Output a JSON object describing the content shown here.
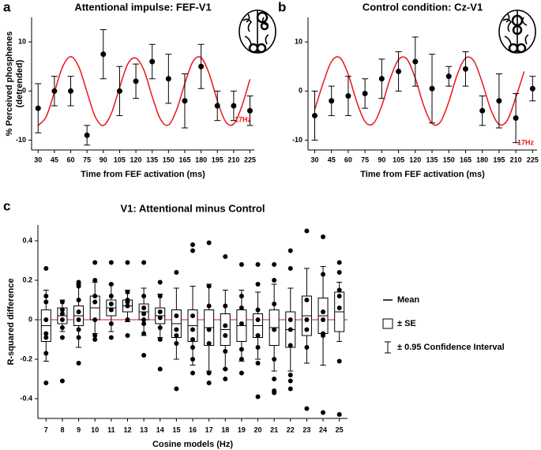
{
  "chart_data": [
    {
      "type": "scatter",
      "panel_label": "a",
      "title": "Attentional impulse: FEF-V1",
      "xlabel": "Time from FEF activation (ms)",
      "ylabel": [
        "% Perceived phosphenes",
        "(detrended)"
      ],
      "x": [
        30,
        45,
        60,
        75,
        90,
        105,
        120,
        135,
        150,
        165,
        180,
        195,
        210,
        225
      ],
      "values": [
        -3.5,
        0,
        0,
        -9,
        7.5,
        0,
        2,
        6,
        2.5,
        -2,
        5,
        -3,
        -3,
        -4
      ],
      "errors": [
        5,
        3,
        3,
        2,
        5,
        5,
        3.5,
        3.5,
        5,
        5.5,
        4.5,
        3,
        3,
        3
      ],
      "color": "#000000",
      "fit": {
        "color": "#e8161b",
        "x": [
          30,
          37.5,
          45,
          52.5,
          60,
          67.5,
          75,
          82.5,
          90,
          97.5,
          105,
          112.5,
          120,
          127.5,
          135,
          142.5,
          150,
          157.5,
          165,
          172.5,
          180,
          187.5,
          195,
          202.5,
          210,
          217.5,
          225
        ],
        "values": [
          -7,
          -5.2,
          -0.2,
          4.9,
          7,
          4.9,
          -0.2,
          -5.2,
          -7,
          -4.5,
          0.7,
          5.5,
          6.7,
          4.2,
          -1.1,
          -5.7,
          -6.9,
          -3.8,
          1.5,
          6,
          6.8,
          3.5,
          -2,
          -6.2,
          -6.7,
          -3.1,
          2.4
        ]
      },
      "annotation": "17Hz",
      "xlim": [
        24,
        229
      ],
      "ylim": [
        -12,
        15
      ],
      "xticks": [
        30,
        45,
        60,
        75,
        90,
        105,
        120,
        135,
        150,
        165,
        180,
        195,
        210,
        225
      ],
      "yticks": [
        10,
        0,
        -10
      ]
    },
    {
      "type": "scatter",
      "panel_label": "b",
      "title": "Control condition: Cz-V1",
      "xlabel": "Time from FEF activation (ms)",
      "x": [
        30,
        45,
        60,
        75,
        90,
        105,
        120,
        135,
        150,
        165,
        180,
        195,
        210,
        225
      ],
      "values": [
        -5,
        -2,
        -1,
        -0.5,
        2.5,
        4,
        6,
        0.5,
        3,
        4.5,
        -4,
        -2,
        -5.5,
        0.5
      ],
      "errors": [
        5,
        3,
        4,
        3,
        4,
        4,
        5,
        7,
        2,
        3.5,
        3,
        5.5,
        5,
        2.5
      ],
      "color": "#000000",
      "fit": {
        "color": "#e8161b",
        "x": [
          30,
          37.5,
          45,
          52.5,
          60,
          67.5,
          75,
          82.5,
          90,
          97.5,
          105,
          112.5,
          120,
          127.5,
          135,
          142.5,
          150,
          157.5,
          165,
          172.5,
          180,
          187.5,
          195,
          202.5,
          210,
          217.5
        ],
        "values": [
          -3.8,
          1.6,
          6,
          6.8,
          3.4,
          -2.1,
          -6.2,
          -6.6,
          -3,
          2.5,
          6.4,
          6.5,
          2.6,
          -2.9,
          -6.6,
          -6.3,
          -2.2,
          3.3,
          6.7,
          6.1,
          1.7,
          -3.7,
          -6.8,
          -5.9,
          -1.3,
          4
        ]
      },
      "annotation": "17Hz",
      "xlim": [
        24,
        229
      ],
      "ylim": [
        -12,
        15
      ],
      "xticks": [
        30,
        45,
        60,
        75,
        90,
        105,
        120,
        135,
        150,
        165,
        180,
        195,
        210,
        225
      ],
      "yticks": [
        10,
        0,
        -10
      ]
    },
    {
      "type": "box",
      "panel_label": "c",
      "title": "V1: Attentional minus Control",
      "xlabel": "Cosine models (Hz)",
      "ylabel": "R-squared difference",
      "categories": [
        "7",
        "8",
        "9",
        "10",
        "11",
        "12",
        "13",
        "14",
        "15",
        "16",
        "17",
        "18",
        "19",
        "20",
        "21",
        "22",
        "23",
        "24",
        "25"
      ],
      "means": [
        -0.03,
        0.02,
        0.02,
        0.06,
        0.06,
        0.07,
        0.04,
        0.02,
        -0.02,
        -0.03,
        -0.04,
        -0.05,
        -0.03,
        -0.03,
        -0.04,
        -0.05,
        0.02,
        0.02,
        0.04
      ],
      "se": [
        0.08,
        0.04,
        0.05,
        0.06,
        0.04,
        0.03,
        0.04,
        0.04,
        0.07,
        0.08,
        0.09,
        0.08,
        0.08,
        0.06,
        0.09,
        0.09,
        0.1,
        0.09,
        0.1
      ],
      "ci": [
        0.18,
        0.08,
        0.16,
        0.13,
        0.12,
        0.08,
        0.12,
        0.11,
        0.18,
        0.2,
        0.22,
        0.2,
        0.18,
        0.17,
        0.22,
        0.21,
        0.24,
        0.25,
        0.15
      ],
      "points": [
        [
          0.26,
          0.12,
          0.09,
          0,
          -0.07,
          -0.09,
          -0.17,
          -0.32
        ],
        [
          0.09,
          0.05,
          0.03,
          0,
          -0.04,
          -0.09,
          -0.31
        ],
        [
          0.19,
          0.17,
          0.1,
          0.04,
          0,
          -0.05,
          -0.09,
          -0.22
        ],
        [
          0.29,
          0.2,
          0.12,
          0.09,
          0,
          -0.08,
          -0.1
        ],
        [
          0.29,
          0.18,
          0.12,
          0.08,
          0.05,
          -0.02,
          -0.09
        ],
        [
          0.29,
          0.14,
          0.1,
          0.09,
          0.07,
          0,
          -0.08
        ],
        [
          0.29,
          0.12,
          0.06,
          0.03,
          0,
          -0.02,
          -0.07,
          -0.18
        ],
        [
          0.19,
          0.12,
          0.04,
          0.01,
          -0.04,
          -0.1,
          -0.25
        ],
        [
          0.24,
          0.02,
          -0.05,
          -0.08,
          -0.12,
          -0.35
        ],
        [
          0.38,
          0.35,
          0.02,
          -0.05,
          -0.1,
          -0.14,
          -0.2,
          -0.27
        ],
        [
          0.39,
          0.17,
          0.07,
          -0.05,
          -0.12,
          -0.27,
          -0.32
        ],
        [
          0.32,
          0.07,
          -0.03,
          -0.08,
          -0.16,
          -0.25,
          -0.3
        ],
        [
          0.28,
          0.12,
          0.06,
          -0.02,
          -0.15,
          -0.2,
          -0.27
        ],
        [
          0.28,
          0.18,
          0.05,
          0,
          -0.08,
          -0.14,
          -0.22,
          -0.39
        ],
        [
          0.28,
          0.2,
          0.08,
          -0.05,
          -0.2,
          -0.3,
          -0.36,
          -0.37
        ],
        [
          0.35,
          0.26,
          0,
          -0.05,
          -0.13,
          -0.28,
          -0.31,
          -0.35
        ],
        [
          0.45,
          0.1,
          0,
          -0.05,
          -0.14,
          -0.45
        ],
        [
          0.42,
          0.23,
          0.04,
          0,
          -0.07,
          -0.08,
          -0.47
        ],
        [
          0.29,
          0.24,
          0.15,
          0.12,
          0.06,
          -0.21,
          -0.48
        ]
      ],
      "color": "#000000",
      "reference_line": 0,
      "reference_color": "#e8161b",
      "legend": [
        "Mean",
        "± SE",
        "± 0.95 Confidence Interval"
      ],
      "ylim": [
        -0.5,
        0.48
      ],
      "yticks": [
        0.4,
        0.2,
        0,
        -0.2,
        -0.4
      ]
    }
  ]
}
